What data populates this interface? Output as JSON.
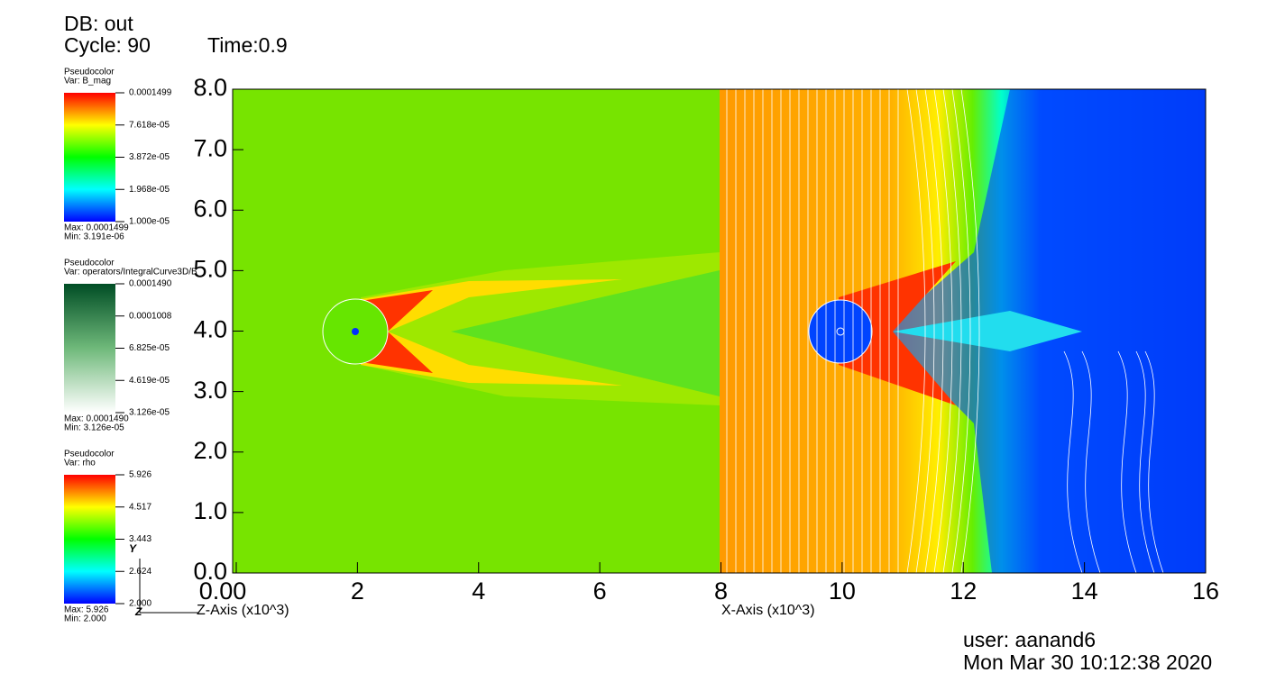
{
  "header": {
    "db": "DB: out",
    "cycle": "Cycle: 90",
    "time": "Time:0.9"
  },
  "legends": [
    {
      "title": "Pseudocolor",
      "var": "Var: B_mag",
      "labels": [
        "0.0001499",
        "7.618e-05",
        "3.872e-05",
        "1.968e-05",
        "1.000e-05"
      ],
      "max": "Max:  0.0001499",
      "min": "Min:  3.191e-06"
    },
    {
      "title": "Pseudocolor",
      "var": "Var: operators/IntegralCurve3D/B",
      "labels": [
        "0.0001490",
        "0.0001008",
        "6.825e-05",
        "4.619e-05",
        "3.126e-05"
      ],
      "max": "Max:  0.0001490",
      "min": "Min:  3.126e-05"
    },
    {
      "title": "Pseudocolor",
      "var": "Var: rho",
      "labels": [
        "5.926",
        "4.517",
        "3.443",
        "2.624",
        "2.000"
      ],
      "max": "Max:  5.926",
      "min": "Min:  2.000"
    }
  ],
  "axes": {
    "yticks": [
      {
        "value": 0,
        "label": "0.0"
      },
      {
        "value": 1,
        "label": "1.0"
      },
      {
        "value": 2,
        "label": "2.0"
      },
      {
        "value": 3,
        "label": "3.0"
      },
      {
        "value": 4,
        "label": "4.0"
      },
      {
        "value": 5,
        "label": "5.0"
      },
      {
        "value": 6,
        "label": "6.0"
      },
      {
        "value": 7,
        "label": "7.0"
      },
      {
        "value": 8,
        "label": "8.0"
      }
    ],
    "xticks": [
      {
        "value": 0,
        "label": "0.00"
      },
      2,
      4,
      6,
      8,
      10,
      12,
      14,
      16
    ],
    "z_title": "Z-Axis (x10^3)",
    "x_title": "X-Axis (x10^3)",
    "triad_y": "Y",
    "triad_z": "Z"
  },
  "footer": {
    "user": "user: aanand6",
    "date": "Mon Mar 30 10:12:38 2020"
  }
}
